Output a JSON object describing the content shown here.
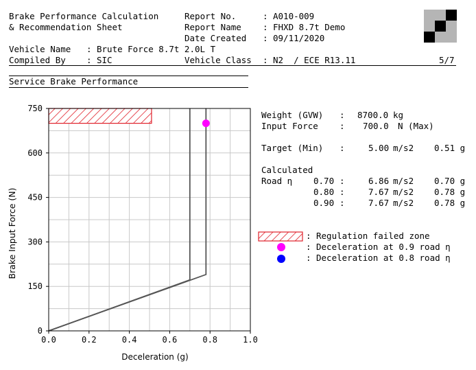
{
  "header": {
    "title_line1": "Brake Performance Calculation",
    "title_line2": "& Recommendation Sheet",
    "report_no_label": "Report No.",
    "report_no_value": "A010-009",
    "report_name_label": "Report Name",
    "report_name_value": "FHXD 8.7t Demo",
    "date_label": "Date Created",
    "date_value": "09/11/2020",
    "vehicle_name_label": "Vehicle Name",
    "vehicle_name_value": "Brute Force 8.7t 2.0L T",
    "compiled_by_label": "Compiled By",
    "compiled_by_value": "SIC",
    "vehicle_class_label": "Vehicle Class",
    "vehicle_class_value": "N2  / ECE R13.11",
    "page": "5/7",
    "sep": ":"
  },
  "section_title": "Service Brake Performance",
  "results": {
    "weight_label": "Weight (GVW)",
    "weight_value": "8700.0",
    "weight_unit": "kg",
    "input_force_label": "Input Force",
    "input_force_value": "700.0",
    "input_force_unit": "N (Max)",
    "target_label": "Target (Min)",
    "target_value": "5.00",
    "target_unit": "m/s2",
    "target_g": "0.51 g",
    "calculated_label": "Calculated",
    "road_label": "Road η",
    "rows": [
      {
        "eta": "0.70",
        "decel": "6.86",
        "unit": "m/s2",
        "g": "0.70 g"
      },
      {
        "eta": "0.80",
        "decel": "7.67",
        "unit": "m/s2",
        "g": "0.78 g"
      },
      {
        "eta": "0.90",
        "decel": "7.67",
        "unit": "m/s2",
        "g": "0.78 g"
      }
    ]
  },
  "legend": {
    "failed_zone": "Regulation failed zone",
    "decel_09": "Deceleration at 0.9 road η",
    "decel_08": "Deceleration at 0.8 road η",
    "sep": ":"
  },
  "colors": {
    "hatch": "#e0202a",
    "magenta": "#ff00ff",
    "blue": "#0000ff",
    "curve": "#555555",
    "grid": "#c8c8c8"
  },
  "chart_data": {
    "type": "line",
    "xlabel": "Deceleration (g)",
    "ylabel": "Brake Input Force (N)",
    "xlim": [
      0.0,
      1.0
    ],
    "ylim": [
      0,
      750
    ],
    "x_ticks": [
      "0.0",
      "0.2",
      "0.4",
      "0.6",
      "0.8",
      "1.0"
    ],
    "y_ticks": [
      "0",
      "150",
      "300",
      "450",
      "600",
      "750"
    ],
    "x_grid_step": 0.1,
    "y_grid_step": 75,
    "grid": true,
    "failed_zone": {
      "x": [
        0.0,
        0.51
      ],
      "y": [
        700,
        750
      ]
    },
    "series": [
      {
        "x": [
          0.0,
          0.7,
          0.7
        ],
        "y": [
          0,
          172,
          750
        ]
      },
      {
        "x": [
          0.0,
          0.78,
          0.78
        ],
        "y": [
          0,
          190,
          750
        ]
      }
    ],
    "points": [
      {
        "x": 0.78,
        "y": 700,
        "color": "magenta"
      }
    ]
  }
}
